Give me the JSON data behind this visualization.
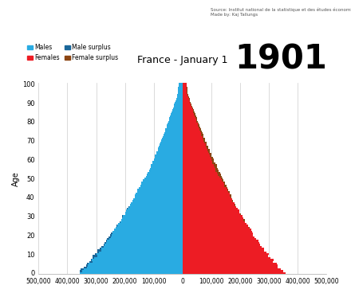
{
  "title": "France - January 1",
  "year_label": "1901",
  "source_text": "Source: Institut national de la statistique et des études économiques\nMade by: Kaj Tallungs",
  "ylabel": "Age",
  "xlim": 500000,
  "xticks": [
    -500000,
    -400000,
    -300000,
    -200000,
    -100000,
    0,
    100000,
    200000,
    300000,
    400000,
    500000
  ],
  "xtick_labels": [
    "500,000",
    "400,000",
    "300,000",
    "200,000",
    "100,000",
    "0",
    "100,000",
    "200,000",
    "300,000",
    "400,000",
    "500,000"
  ],
  "yticks": [
    0,
    10,
    20,
    30,
    40,
    50,
    60,
    70,
    80,
    90,
    100
  ],
  "color_male": "#29ABE2",
  "color_female": "#ED1C24",
  "color_male_surplus": "#1A6699",
  "color_female_surplus": "#8B4513",
  "background": "#f0f0f0"
}
